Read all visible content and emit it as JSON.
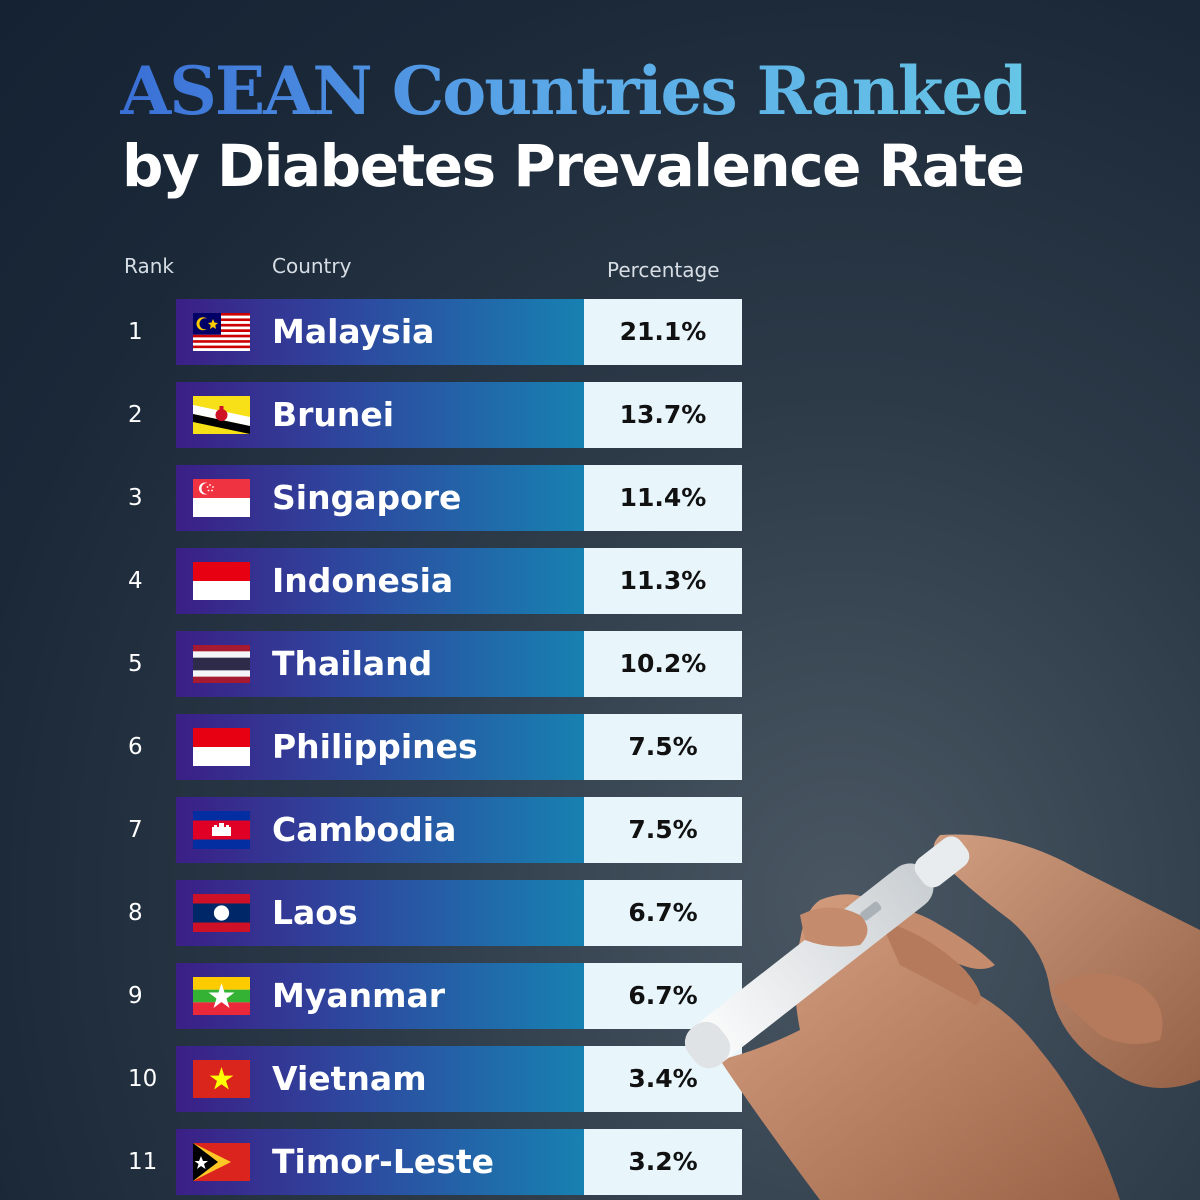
{
  "title": {
    "line1": "ASEAN Countries Ranked",
    "line2": "by Diabetes Prevalence Rate"
  },
  "columns": {
    "rank": "Rank",
    "country": "Country",
    "percentage": "Percentage"
  },
  "chart_data": {
    "type": "table",
    "title": "ASEAN Countries Ranked by Diabetes Prevalence Rate",
    "rows": [
      {
        "rank": "1",
        "country": "Malaysia",
        "percentage": "21.1%",
        "value": 21.1,
        "flag": "malaysia-flag-icon"
      },
      {
        "rank": "2",
        "country": "Brunei",
        "percentage": "13.7%",
        "value": 13.7,
        "flag": "brunei-flag-icon"
      },
      {
        "rank": "3",
        "country": "Singapore",
        "percentage": "11.4%",
        "value": 11.4,
        "flag": "singapore-flag-icon"
      },
      {
        "rank": "4",
        "country": "Indonesia",
        "percentage": "11.3%",
        "value": 11.3,
        "flag": "indonesia-flag-icon"
      },
      {
        "rank": "5",
        "country": "Thailand",
        "percentage": "10.2%",
        "value": 10.2,
        "flag": "thailand-flag-icon"
      },
      {
        "rank": "6",
        "country": "Philippines",
        "percentage": "7.5%",
        "value": 7.5,
        "flag": "philippines-flag-icon"
      },
      {
        "rank": "7",
        "country": "Cambodia",
        "percentage": "7.5%",
        "value": 7.5,
        "flag": "cambodia-flag-icon"
      },
      {
        "rank": "8",
        "country": "Laos",
        "percentage": "6.7%",
        "value": 6.7,
        "flag": "laos-flag-icon"
      },
      {
        "rank": "9",
        "country": "Myanmar",
        "percentage": "6.7%",
        "value": 6.7,
        "flag": "myanmar-flag-icon"
      },
      {
        "rank": "10",
        "country": "Vietnam",
        "percentage": "3.4%",
        "value": 3.4,
        "flag": "vietnam-flag-icon"
      },
      {
        "rank": "11",
        "country": "Timor-Leste",
        "percentage": "3.2%",
        "value": 3.2,
        "flag": "timor-leste-flag-icon"
      }
    ]
  },
  "colors": {
    "bar_start": "#3b1f86",
    "bar_end": "#1781b1",
    "value_cell": "#e8f5fb",
    "title_gradient": [
      "#3a6fd6",
      "#66c6e6"
    ]
  }
}
